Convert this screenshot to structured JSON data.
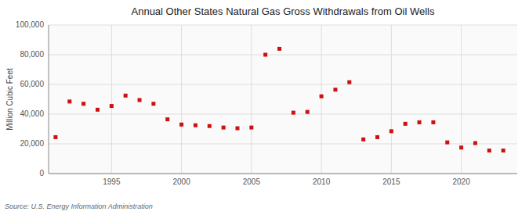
{
  "chart_data": {
    "type": "scatter",
    "title": "Annual Other States Natural Gas Gross Withdrawals from Oil Wells",
    "ylabel": "Million Cubic Feet",
    "annotation": "Source: U.S. Energy Information Administration",
    "x": [
      1991,
      1992,
      1993,
      1994,
      1995,
      1996,
      1997,
      1998,
      1999,
      2000,
      2001,
      2002,
      2003,
      2004,
      2005,
      2006,
      2007,
      2008,
      2009,
      2010,
      2011,
      2012,
      2013,
      2014,
      2015,
      2016,
      2017,
      2018,
      2019,
      2020,
      2021,
      2022,
      2023
    ],
    "values": [
      24500,
      48500,
      47000,
      43000,
      45500,
      52500,
      49500,
      47000,
      36500,
      33000,
      32500,
      32000,
      31000,
      30500,
      31000,
      80000,
      84000,
      41000,
      41500,
      52000,
      56500,
      61500,
      23000,
      24500,
      28500,
      33500,
      34500,
      34500,
      21000,
      17500,
      20500,
      15500,
      15500
    ],
    "color": "#cc1111",
    "marker": "square",
    "xlim": [
      1990.5,
      2024
    ],
    "xticks": [
      1995,
      2000,
      2005,
      2010,
      2015,
      2020
    ],
    "ylim": [
      0,
      100000
    ],
    "yticks": [
      0,
      {
        "value": 20000,
        "label": "20,000"
      },
      {
        "value": 40000,
        "label": "40,000"
      },
      {
        "value": 60000,
        "label": "60,000"
      },
      {
        "value": 80000,
        "label": "80,000"
      },
      {
        "value": 100000,
        "label": "100,000"
      }
    ],
    "grid": true
  }
}
